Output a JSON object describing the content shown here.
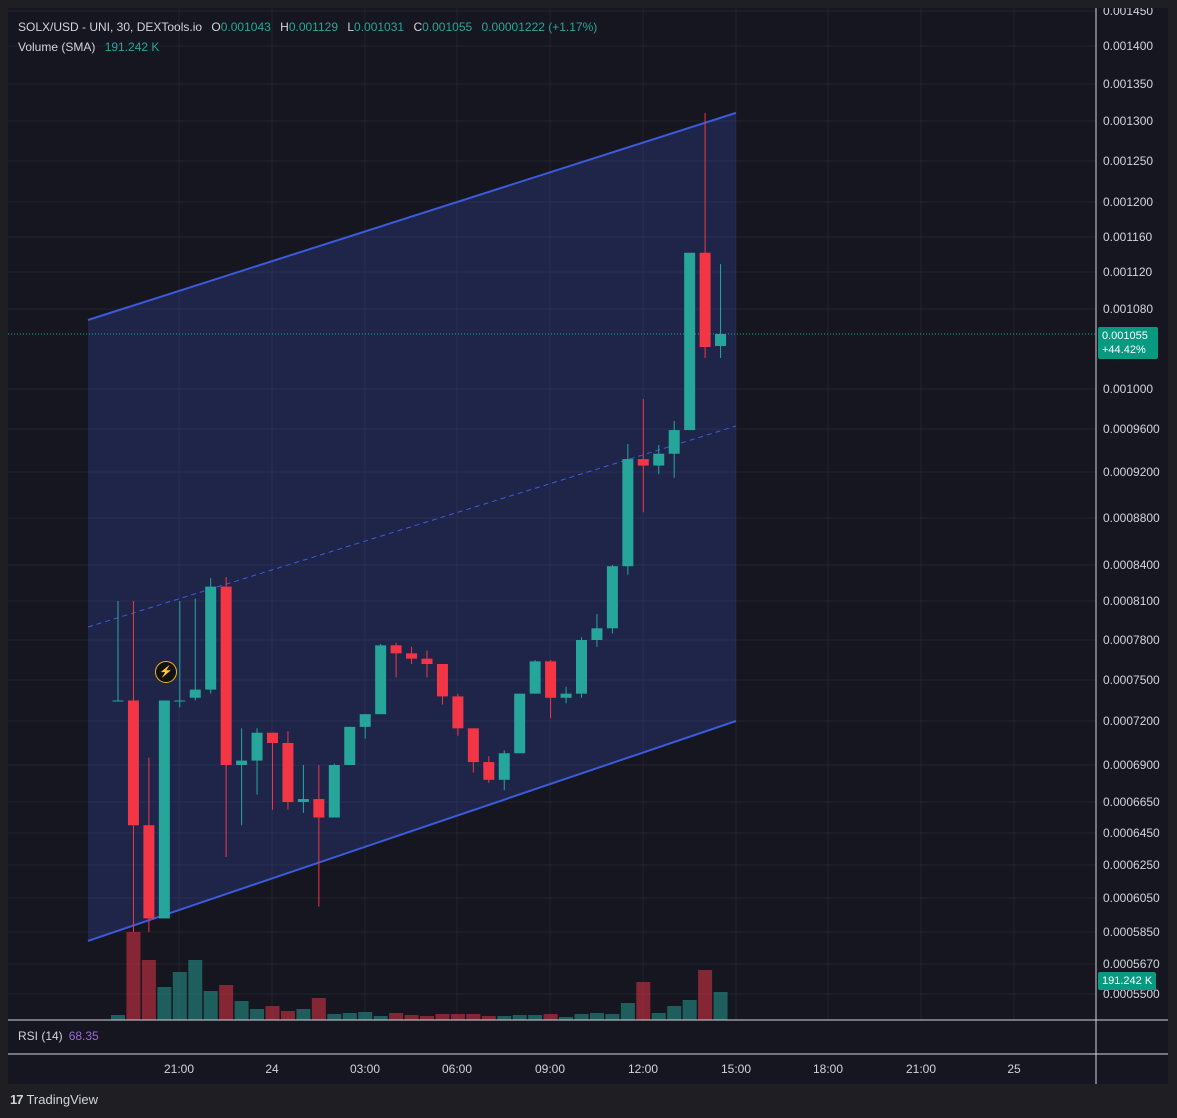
{
  "legend": {
    "symbol": "SOLX/USD - UNI, 30, DEXTools.io",
    "o_label": "O",
    "o": "0.001043",
    "h_label": "H",
    "h": "0.001129",
    "l_label": "L",
    "l": "0.001031",
    "c_label": "C",
    "c": "0.001055",
    "change": "0.00001222 (+1.17%)",
    "volume_label": "Volume (SMA)",
    "volume_value": "191.242 K"
  },
  "rsi": {
    "label": "RSI (14)",
    "value": "68.35"
  },
  "last_price": {
    "price": "0.001055",
    "change": "+44.42%"
  },
  "volume_badge": "191.242 K",
  "brand": {
    "logo": "17",
    "name": "TradingView"
  },
  "alert_icon": "lightning-alert-icon",
  "colors": {
    "up": "#26a69a",
    "down": "#f23645",
    "channel": "#3b5bdb",
    "background": "#161620",
    "rsi": "#9c6ad6"
  },
  "chart_data": {
    "type": "candlestick",
    "yaxis_labels": [
      "0.001450",
      "0.001400",
      "0.001350",
      "0.001300",
      "0.001250",
      "0.001200",
      "0.001160",
      "0.001120",
      "0.001080",
      "0.001000",
      "0.0009600",
      "0.0009200",
      "0.0008800",
      "0.0008400",
      "0.0008100",
      "0.0007800",
      "0.0007500",
      "0.0007200",
      "0.0006900",
      "0.0006650",
      "0.0006450",
      "0.0006250",
      "0.0006050",
      "0.0005850",
      "0.0005670",
      "0.0005500"
    ],
    "xaxis_labels": [
      "21:00",
      "24",
      "03:00",
      "06:00",
      "09:00",
      "12:00",
      "15:00",
      "18:00",
      "21:00",
      "25"
    ],
    "candles": [
      {
        "o": 0.000735,
        "h": 0.00081,
        "l": 0.000735,
        "c": 0.000735,
        "v": 5
      },
      {
        "o": 0.000735,
        "h": 0.00081,
        "l": 0.000585,
        "c": 0.00065,
        "v": 88
      },
      {
        "o": 0.00065,
        "h": 0.000695,
        "l": 0.000585,
        "c": 0.000593,
        "v": 60
      },
      {
        "o": 0.000593,
        "h": 0.000735,
        "l": 0.000593,
        "c": 0.000735,
        "v": 33
      },
      {
        "o": 0.000735,
        "h": 0.00081,
        "l": 0.00073,
        "c": 0.000735,
        "v": 48
      },
      {
        "o": 0.000737,
        "h": 0.000812,
        "l": 0.000735,
        "c": 0.000743,
        "v": 60
      },
      {
        "o": 0.000743,
        "h": 0.000829,
        "l": 0.00074,
        "c": 0.000822,
        "v": 29
      },
      {
        "o": 0.000822,
        "h": 0.00083,
        "l": 0.00063,
        "c": 0.00069,
        "v": 35
      },
      {
        "o": 0.00069,
        "h": 0.000715,
        "l": 0.00065,
        "c": 0.000693,
        "v": 19
      },
      {
        "o": 0.000693,
        "h": 0.000715,
        "l": 0.00067,
        "c": 0.000712,
        "v": 11
      },
      {
        "o": 0.000712,
        "h": 0.000712,
        "l": 0.00066,
        "c": 0.000705,
        "v": 14
      },
      {
        "o": 0.000705,
        "h": 0.000713,
        "l": 0.00066,
        "c": 0.000665,
        "v": 9
      },
      {
        "o": 0.000665,
        "h": 0.00069,
        "l": 0.000658,
        "c": 0.000667,
        "v": 11
      },
      {
        "o": 0.000667,
        "h": 0.00069,
        "l": 0.0006,
        "c": 0.000655,
        "v": 22
      },
      {
        "o": 0.000655,
        "h": 0.000691,
        "l": 0.000655,
        "c": 0.00069,
        "v": 6
      },
      {
        "o": 0.00069,
        "h": 0.000716,
        "l": 0.00069,
        "c": 0.000716,
        "v": 7
      },
      {
        "o": 0.000716,
        "h": 0.000725,
        "l": 0.000708,
        "c": 0.000725,
        "v": 8
      },
      {
        "o": 0.000725,
        "h": 0.000777,
        "l": 0.000725,
        "c": 0.000776,
        "v": 4
      },
      {
        "o": 0.000776,
        "h": 0.000778,
        "l": 0.000752,
        "c": 0.00077,
        "v": 7
      },
      {
        "o": 0.00077,
        "h": 0.000775,
        "l": 0.000762,
        "c": 0.000766,
        "v": 5
      },
      {
        "o": 0.000766,
        "h": 0.000772,
        "l": 0.000752,
        "c": 0.000762,
        "v": 4
      },
      {
        "o": 0.000762,
        "h": 0.000762,
        "l": 0.000732,
        "c": 0.000738,
        "v": 6
      },
      {
        "o": 0.000738,
        "h": 0.00074,
        "l": 0.00071,
        "c": 0.000715,
        "v": 6
      },
      {
        "o": 0.000715,
        "h": 0.000715,
        "l": 0.000685,
        "c": 0.000692,
        "v": 6
      },
      {
        "o": 0.000692,
        "h": 0.000696,
        "l": 0.000678,
        "c": 0.00068,
        "v": 4
      },
      {
        "o": 0.00068,
        "h": 0.0007,
        "l": 0.000673,
        "c": 0.000698,
        "v": 4
      },
      {
        "o": 0.000698,
        "h": 0.00074,
        "l": 0.000698,
        "c": 0.00074,
        "v": 5
      },
      {
        "o": 0.00074,
        "h": 0.000765,
        "l": 0.00074,
        "c": 0.000764,
        "v": 5
      },
      {
        "o": 0.000764,
        "h": 0.000765,
        "l": 0.000722,
        "c": 0.000737,
        "v": 6
      },
      {
        "o": 0.000737,
        "h": 0.000745,
        "l": 0.000733,
        "c": 0.00074,
        "v": 3
      },
      {
        "o": 0.00074,
        "h": 0.000782,
        "l": 0.000737,
        "c": 0.00078,
        "v": 6
      },
      {
        "o": 0.00078,
        "h": 0.0008,
        "l": 0.000775,
        "c": 0.000789,
        "v": 7
      },
      {
        "o": 0.000789,
        "h": 0.00084,
        "l": 0.000785,
        "c": 0.000839,
        "v": 6
      },
      {
        "o": 0.000839,
        "h": 0.000946,
        "l": 0.000832,
        "c": 0.000932,
        "v": 17
      },
      {
        "o": 0.000932,
        "h": 0.00099,
        "l": 0.000885,
        "c": 0.000926,
        "v": 38
      },
      {
        "o": 0.000926,
        "h": 0.000945,
        "l": 0.000918,
        "c": 0.000937,
        "v": 7
      },
      {
        "o": 0.000937,
        "h": 0.000968,
        "l": 0.000915,
        "c": 0.000959,
        "v": 14
      },
      {
        "o": 0.000959,
        "h": 0.001142,
        "l": 0.000959,
        "c": 0.001142,
        "v": 20
      },
      {
        "o": 0.001142,
        "h": 0.001311,
        "l": 0.001031,
        "c": 0.001042,
        "v": 50
      },
      {
        "o": 0.001043,
        "h": 0.001129,
        "l": 0.001031,
        "c": 0.001055,
        "v": 28
      }
    ],
    "channel": {
      "upper": [
        [
          0,
          0.001069
        ],
        [
          42,
          0.001311
        ]
      ],
      "lower": [
        [
          0,
          0.00058
        ],
        [
          42,
          0.00072
        ]
      ],
      "mid": [
        [
          0,
          0.00079
        ],
        [
          42,
          0.000963
        ]
      ]
    },
    "last_price_line": 0.001055
  }
}
